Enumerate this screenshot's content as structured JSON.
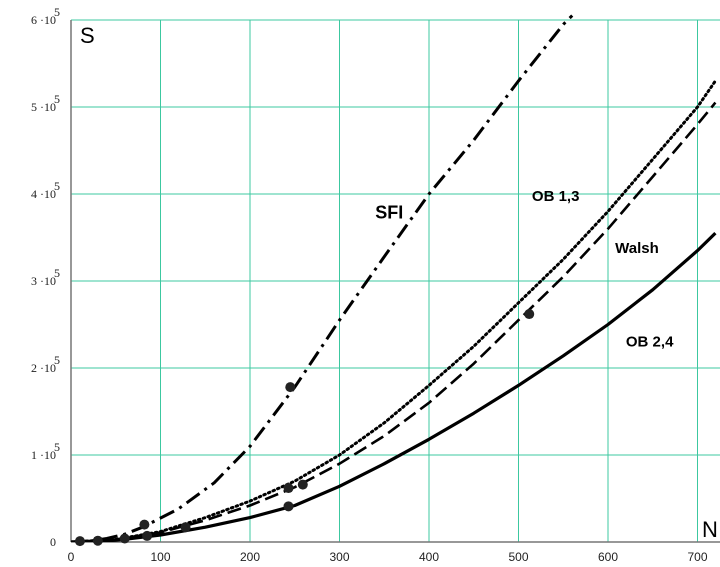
{
  "chart_data": {
    "type": "line",
    "xlabel": "N",
    "ylabel": "S",
    "xlim": [
      0,
      720
    ],
    "ylim": [
      0,
      600000
    ],
    "grid": true,
    "x_ticks": [
      "0",
      "100",
      "200",
      "300",
      "400",
      "500",
      "600",
      "700"
    ],
    "y_ticks": [
      {
        "mantissa": "0",
        "exp": ""
      },
      {
        "mantissa": "1 ·10",
        "exp": "5"
      },
      {
        "mantissa": "2 ·10",
        "exp": "5"
      },
      {
        "mantissa": "3 ·10",
        "exp": "5"
      },
      {
        "mantissa": "4 ·10",
        "exp": "5"
      },
      {
        "mantissa": "5 ·10",
        "exp": "5"
      },
      {
        "mantissa": "6 ·10",
        "exp": "5"
      }
    ],
    "colors": {
      "grid": "#3cc8a0",
      "line": "#000000"
    },
    "series": [
      {
        "name": "SFI",
        "style": "dashdot",
        "label_at": [
          340,
          372000
        ],
        "x": [
          0,
          20,
          40,
          60,
          80,
          120,
          160,
          200,
          250,
          300,
          350,
          400,
          450,
          500,
          550,
          560
        ],
        "y": [
          0,
          1000,
          4000,
          9000,
          17000,
          38000,
          68000,
          110000,
          178000,
          255000,
          328000,
          400000,
          462000,
          530000,
          595000,
          605000
        ]
      },
      {
        "name": "OB 1,3",
        "style": "dotted",
        "label_at": [
          515,
          392000
        ],
        "x": [
          0,
          50,
          100,
          150,
          200,
          250,
          300,
          350,
          400,
          450,
          500,
          550,
          600,
          650,
          700,
          720
        ],
        "y": [
          0,
          3000,
          12000,
          28000,
          47000,
          70000,
          100000,
          137000,
          180000,
          225000,
          275000,
          325000,
          380000,
          440000,
          500000,
          530000
        ]
      },
      {
        "name": "Walsh",
        "style": "dashed",
        "label_at": [
          608,
          332000
        ],
        "x": [
          0,
          50,
          100,
          150,
          200,
          250,
          300,
          350,
          400,
          450,
          500,
          550,
          600,
          650,
          700,
          720
        ],
        "y": [
          0,
          3000,
          11000,
          25000,
          42000,
          63000,
          90000,
          122000,
          160000,
          205000,
          255000,
          305000,
          360000,
          420000,
          480000,
          505000
        ]
      },
      {
        "name": "OB 2,4",
        "style": "solid",
        "label_at": [
          620,
          225000
        ],
        "x": [
          0,
          50,
          100,
          150,
          200,
          250,
          300,
          350,
          400,
          450,
          500,
          550,
          600,
          650,
          700,
          720
        ],
        "y": [
          0,
          2000,
          8000,
          17000,
          28000,
          42000,
          64000,
          90000,
          118000,
          148000,
          180000,
          214000,
          250000,
          290000,
          335000,
          355000
        ]
      }
    ],
    "markers": [
      {
        "x": 82,
        "y": 20000
      },
      {
        "x": 85,
        "y": 7000
      },
      {
        "x": 128,
        "y": 17000
      },
      {
        "x": 60,
        "y": 4000
      },
      {
        "x": 245,
        "y": 178000
      },
      {
        "x": 243,
        "y": 62000
      },
      {
        "x": 259,
        "y": 66000
      },
      {
        "x": 243,
        "y": 41000
      },
      {
        "x": 512,
        "y": 262000
      },
      {
        "x": 10,
        "y": 1000
      },
      {
        "x": 30,
        "y": 1500
      }
    ]
  }
}
